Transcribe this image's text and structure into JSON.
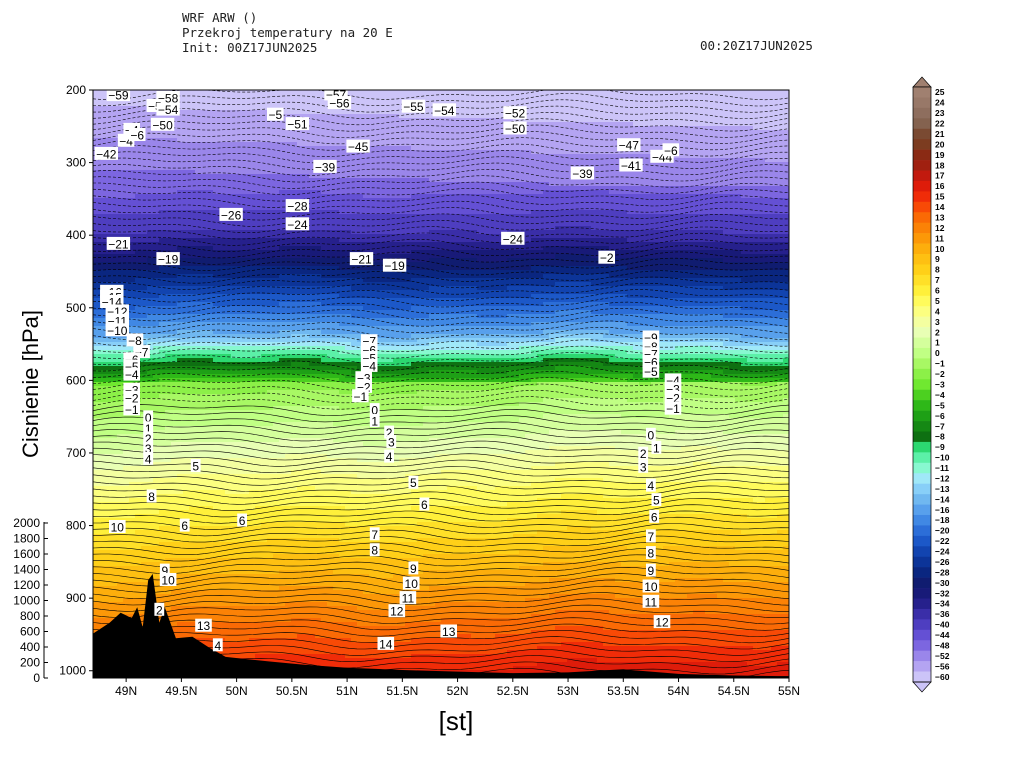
{
  "header": {
    "line1": "WRF ARW ()",
    "line2": "Przekroj temperatury na 20 E",
    "line3": "Init: 00Z17JUN2025",
    "valid": "00:20Z17JUN2025"
  },
  "chart_data": {
    "type": "heatmap",
    "subtype": "vertical cross-section, filled contours of temperature",
    "xlabel": "[st]",
    "ylabel": "Cisnienie [hPa]",
    "x_range": [
      48.7,
      55.0
    ],
    "y_range": [
      1010,
      200
    ],
    "x_ticks": [
      "49N",
      "49.5N",
      "50N",
      "50.5N",
      "51N",
      "51.5N",
      "52N",
      "52.5N",
      "53N",
      "53.5N",
      "54N",
      "54.5N",
      "55N"
    ],
    "x_tick_values": [
      49.0,
      49.5,
      50.0,
      50.5,
      51.0,
      51.5,
      52.0,
      52.5,
      53.0,
      53.5,
      54.0,
      54.5,
      55.0
    ],
    "y_ticks": [
      "200",
      "300",
      "400",
      "500",
      "600",
      "700",
      "800",
      "900",
      "1000"
    ],
    "y_tick_values": [
      200,
      300,
      400,
      500,
      600,
      700,
      800,
      900,
      1000
    ],
    "terrain_axis": {
      "ticks": [
        "2000",
        "1800",
        "1600",
        "1400",
        "1200",
        "1000",
        "800",
        "600",
        "400",
        "200",
        "0"
      ],
      "values": [
        2000,
        1800,
        1600,
        1400,
        1200,
        1000,
        800,
        600,
        400,
        200,
        0
      ]
    },
    "colorbar": {
      "levels": [
        "25",
        "24",
        "23",
        "22",
        "21",
        "20",
        "19",
        "18",
        "17",
        "16",
        "15",
        "14",
        "13",
        "12",
        "11",
        "10",
        "9",
        "8",
        "7",
        "6",
        "5",
        "4",
        "3",
        "2",
        "1",
        "0",
        "−1",
        "−2",
        "−3",
        "−4",
        "−5",
        "−6",
        "−7",
        "−8",
        "−9",
        "−10",
        "−11",
        "−12",
        "−13",
        "−14",
        "−16",
        "−18",
        "−20",
        "−22",
        "−24",
        "−26",
        "−28",
        "−30",
        "−32",
        "−34",
        "−36",
        "−40",
        "−44",
        "−48",
        "−52",
        "−56",
        "−60"
      ],
      "colors": [
        "#a08070",
        "#987868",
        "#8e6e5e",
        "#84624f",
        "#7a4a32",
        "#7c3c20",
        "#8a2a14",
        "#a02010",
        "#c21a0e",
        "#de1c0a",
        "#f02c08",
        "#f84a06",
        "#fa6a05",
        "#fb8206",
        "#fc9808",
        "#fdae0c",
        "#fec012",
        "#ffd018",
        "#ffe028",
        "#fff03a",
        "#fffb5c",
        "#fcff80",
        "#f4ffa0",
        "#e8ffb4",
        "#d4ff9c",
        "#c0ff84",
        "#a8f864",
        "#8cf048",
        "#70e830",
        "#4cd020",
        "#2eb818",
        "#1ea016",
        "#158814",
        "#0e7012",
        "#2cd870",
        "#5cf0a8",
        "#88f8d0",
        "#a0e8f8",
        "#88cff8",
        "#70b8f0",
        "#58a0ec",
        "#4088e4",
        "#2c6ed8",
        "#1c58c8",
        "#1244b0",
        "#0c3498",
        "#0a2680",
        "#101c70",
        "#181a78",
        "#26208c",
        "#3a2ea8",
        "#4e3ec0",
        "#6450d4",
        "#7c66e0",
        "#9a86ea",
        "#b4a4f2",
        "#ccc4f8"
      ]
    },
    "contour_labels": [
      {
        "t": "−59",
        "x": 48.93,
        "p": 207
      },
      {
        "t": "−58",
        "x": 49.38,
        "p": 211
      },
      {
        "t": "−5",
        "x": 49.26,
        "p": 222
      },
      {
        "t": "−54",
        "x": 49.38,
        "p": 227
      },
      {
        "t": "−50",
        "x": 49.33,
        "p": 248
      },
      {
        "t": "−57",
        "x": 50.9,
        "p": 206
      },
      {
        "t": "−56",
        "x": 50.93,
        "p": 218
      },
      {
        "t": "−55",
        "x": 51.6,
        "p": 223
      },
      {
        "t": "−54",
        "x": 51.88,
        "p": 228
      },
      {
        "t": "−5",
        "x": 50.35,
        "p": 234
      },
      {
        "t": "−51",
        "x": 50.55,
        "p": 247
      },
      {
        "t": "−52",
        "x": 52.52,
        "p": 232
      },
      {
        "t": "−50",
        "x": 52.52,
        "p": 253
      },
      {
        "t": "−4",
        "x": 49.05,
        "p": 255
      },
      {
        "t": "−4",
        "x": 49.0,
        "p": 270
      },
      {
        "t": "−42",
        "x": 48.82,
        "p": 288
      },
      {
        "t": "−6",
        "x": 49.1,
        "p": 262
      },
      {
        "t": "−47",
        "x": 53.55,
        "p": 276
      },
      {
        "t": "−44",
        "x": 53.85,
        "p": 292
      },
      {
        "t": "−6",
        "x": 53.93,
        "p": 283
      },
      {
        "t": "−41",
        "x": 53.57,
        "p": 304
      },
      {
        "t": "−39",
        "x": 53.13,
        "p": 315
      },
      {
        "t": "−39",
        "x": 50.8,
        "p": 306
      },
      {
        "t": "−45",
        "x": 51.1,
        "p": 278
      },
      {
        "t": "−28",
        "x": 50.55,
        "p": 360
      },
      {
        "t": "−26",
        "x": 49.95,
        "p": 372
      },
      {
        "t": "−24",
        "x": 50.55,
        "p": 385
      },
      {
        "t": "−21",
        "x": 48.93,
        "p": 412
      },
      {
        "t": "−19",
        "x": 49.38,
        "p": 433
      },
      {
        "t": "−24",
        "x": 52.5,
        "p": 405
      },
      {
        "t": "−21",
        "x": 51.13,
        "p": 433
      },
      {
        "t": "−19",
        "x": 51.43,
        "p": 442
      },
      {
        "t": "−2",
        "x": 53.35,
        "p": 431
      },
      {
        "t": "−16",
        "x": 48.87,
        "p": 478
      },
      {
        "t": "−15",
        "x": 48.87,
        "p": 485
      },
      {
        "t": "−14",
        "x": 48.87,
        "p": 492
      },
      {
        "t": "−12",
        "x": 48.92,
        "p": 505
      },
      {
        "t": "−11",
        "x": 48.92,
        "p": 518
      },
      {
        "t": "−10",
        "x": 48.92,
        "p": 531
      },
      {
        "t": "−8",
        "x": 49.08,
        "p": 545
      },
      {
        "t": "−7",
        "x": 49.14,
        "p": 561
      },
      {
        "t": "−6",
        "x": 49.05,
        "p": 571
      },
      {
        "t": "−5",
        "x": 49.05,
        "p": 581
      },
      {
        "t": "−4",
        "x": 49.05,
        "p": 592
      },
      {
        "t": "−3",
        "x": 49.05,
        "p": 613
      },
      {
        "t": "−2",
        "x": 49.05,
        "p": 624
      },
      {
        "t": "−1",
        "x": 49.05,
        "p": 640
      },
      {
        "t": "−7",
        "x": 51.2,
        "p": 546
      },
      {
        "t": "−6",
        "x": 51.2,
        "p": 558
      },
      {
        "t": "−5",
        "x": 51.2,
        "p": 569
      },
      {
        "t": "−4",
        "x": 51.2,
        "p": 580
      },
      {
        "t": "−3",
        "x": 51.15,
        "p": 597
      },
      {
        "t": "−2",
        "x": 51.15,
        "p": 609
      },
      {
        "t": "−1",
        "x": 51.12,
        "p": 622
      },
      {
        "t": "−9",
        "x": 53.75,
        "p": 541
      },
      {
        "t": "−8",
        "x": 53.75,
        "p": 553
      },
      {
        "t": "−7",
        "x": 53.75,
        "p": 564
      },
      {
        "t": "−6",
        "x": 53.75,
        "p": 575
      },
      {
        "t": "−5",
        "x": 53.75,
        "p": 588
      },
      {
        "t": "−4",
        "x": 53.95,
        "p": 600
      },
      {
        "t": "−3",
        "x": 53.95,
        "p": 612
      },
      {
        "t": "−2",
        "x": 53.95,
        "p": 624
      },
      {
        "t": "−1",
        "x": 53.95,
        "p": 639
      },
      {
        "t": "0",
        "x": 49.2,
        "p": 651
      },
      {
        "t": "1",
        "x": 49.2,
        "p": 666
      },
      {
        "t": "2",
        "x": 49.2,
        "p": 680
      },
      {
        "t": "3",
        "x": 49.2,
        "p": 694
      },
      {
        "t": "4",
        "x": 49.2,
        "p": 708
      },
      {
        "t": "5",
        "x": 49.63,
        "p": 718
      },
      {
        "t": "0",
        "x": 51.25,
        "p": 641
      },
      {
        "t": "1",
        "x": 51.25,
        "p": 656
      },
      {
        "t": "2",
        "x": 51.38,
        "p": 672
      },
      {
        "t": "3",
        "x": 51.4,
        "p": 685
      },
      {
        "t": "4",
        "x": 51.38,
        "p": 705
      },
      {
        "t": "0",
        "x": 53.75,
        "p": 675
      },
      {
        "t": "1",
        "x": 53.8,
        "p": 693
      },
      {
        "t": "2",
        "x": 53.68,
        "p": 701
      },
      {
        "t": "3",
        "x": 53.68,
        "p": 719
      },
      {
        "t": "4",
        "x": 53.75,
        "p": 745
      },
      {
        "t": "5",
        "x": 53.8,
        "p": 765
      },
      {
        "t": "6",
        "x": 53.78,
        "p": 788
      },
      {
        "t": "7",
        "x": 53.75,
        "p": 815
      },
      {
        "t": "8",
        "x": 53.75,
        "p": 838
      },
      {
        "t": "9",
        "x": 53.75,
        "p": 862
      },
      {
        "t": "10",
        "x": 53.75,
        "p": 884
      },
      {
        "t": "11",
        "x": 53.75,
        "p": 905
      },
      {
        "t": "12",
        "x": 53.85,
        "p": 933
      },
      {
        "t": "5",
        "x": 51.6,
        "p": 741
      },
      {
        "t": "6",
        "x": 51.7,
        "p": 771
      },
      {
        "t": "7",
        "x": 51.25,
        "p": 812
      },
      {
        "t": "8",
        "x": 51.25,
        "p": 834
      },
      {
        "t": "9",
        "x": 51.6,
        "p": 859
      },
      {
        "t": "10",
        "x": 51.58,
        "p": 880
      },
      {
        "t": "11",
        "x": 51.55,
        "p": 900
      },
      {
        "t": "12",
        "x": 51.45,
        "p": 918
      },
      {
        "t": "6",
        "x": 50.05,
        "p": 793
      },
      {
        "t": "6",
        "x": 49.53,
        "p": 800
      },
      {
        "t": "10",
        "x": 48.92,
        "p": 802
      },
      {
        "t": "8",
        "x": 49.23,
        "p": 760
      },
      {
        "t": "9",
        "x": 49.35,
        "p": 862
      },
      {
        "t": "10",
        "x": 49.38,
        "p": 875
      },
      {
        "t": "2",
        "x": 49.3,
        "p": 916
      },
      {
        "t": "13",
        "x": 49.7,
        "p": 938
      },
      {
        "t": "4",
        "x": 49.83,
        "p": 965
      },
      {
        "t": "14",
        "x": 51.35,
        "p": 963
      },
      {
        "t": "13",
        "x": 51.92,
        "p": 946
      }
    ]
  }
}
